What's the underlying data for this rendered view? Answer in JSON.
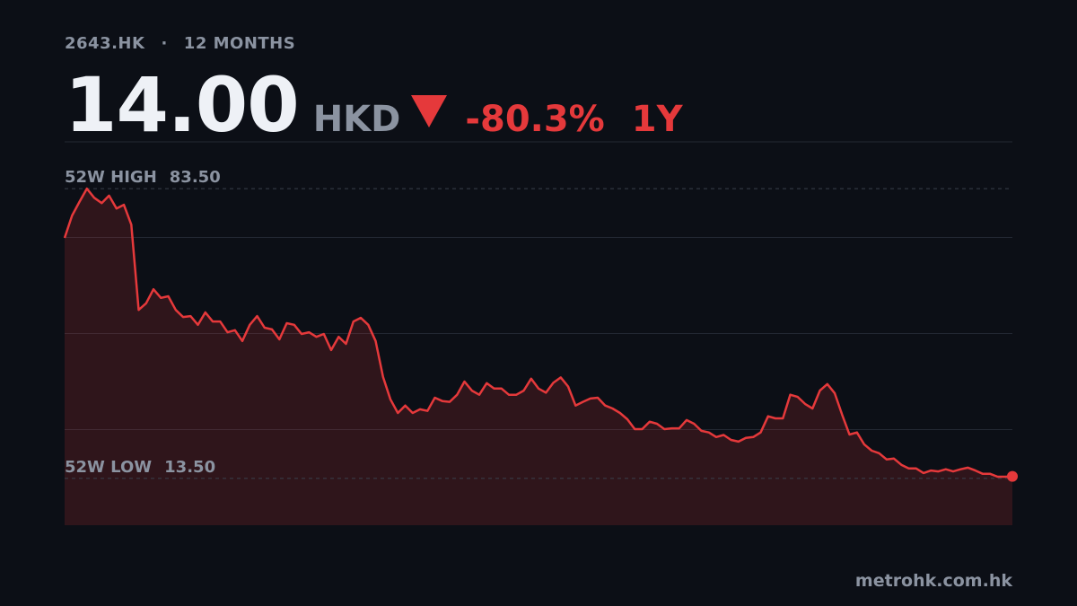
{
  "chart_data": {
    "type": "line",
    "ticker": "2643.HK",
    "period_label": "12 MONTHS",
    "price": "14.00",
    "currency": "HKD",
    "change": "-80.3%",
    "range": "1Y",
    "source": "metrohk.com.hk",
    "ylim": [
      2.2,
      94.8
    ],
    "high": {
      "label": "52W HIGH",
      "value": 83.5,
      "value_label": "83.50"
    },
    "low": {
      "label": "52W LOW",
      "value": 13.5,
      "value_label": "13.50"
    },
    "series": [
      {
        "color": "#e5393b",
        "values": [
          71.6,
          77.0,
          80.3,
          83.5,
          81.3,
          80.0,
          81.8,
          78.7,
          79.6,
          74.8,
          54.2,
          55.8,
          59.2,
          57.1,
          57.5,
          54.2,
          52.5,
          52.7,
          50.6,
          53.6,
          51.4,
          51.4,
          48.8,
          49.3,
          46.7,
          50.6,
          52.7,
          49.9,
          49.5,
          47.1,
          51.0,
          50.6,
          48.4,
          48.8,
          47.7,
          48.4,
          44.5,
          47.7,
          46.0,
          51.4,
          52.3,
          50.6,
          46.7,
          38.0,
          32.6,
          29.3,
          31.1,
          29.3,
          30.2,
          29.8,
          33.0,
          32.2,
          32.0,
          33.7,
          36.9,
          34.7,
          33.7,
          36.5,
          35.2,
          35.2,
          33.7,
          33.7,
          34.7,
          37.6,
          35.2,
          34.2,
          36.6,
          37.9,
          35.7,
          31.1,
          32.0,
          32.8,
          33.0,
          31.1,
          30.4,
          29.3,
          27.8,
          25.4,
          25.4,
          27.2,
          26.7,
          25.4,
          25.6,
          25.6,
          27.6,
          26.7,
          25.0,
          24.6,
          23.5,
          24.0,
          22.8,
          22.4,
          23.3,
          23.5,
          24.6,
          28.5,
          28.0,
          28.0,
          33.7,
          33.2,
          31.5,
          30.4,
          34.7,
          36.3,
          34.1,
          28.9,
          24.1,
          24.6,
          21.7,
          20.2,
          19.6,
          18.1,
          18.3,
          16.8,
          15.9,
          15.9,
          14.8,
          15.4,
          15.2,
          15.7,
          15.2,
          15.7,
          16.1,
          15.4,
          14.6,
          14.6,
          13.9,
          13.9,
          14.0
        ]
      }
    ]
  }
}
